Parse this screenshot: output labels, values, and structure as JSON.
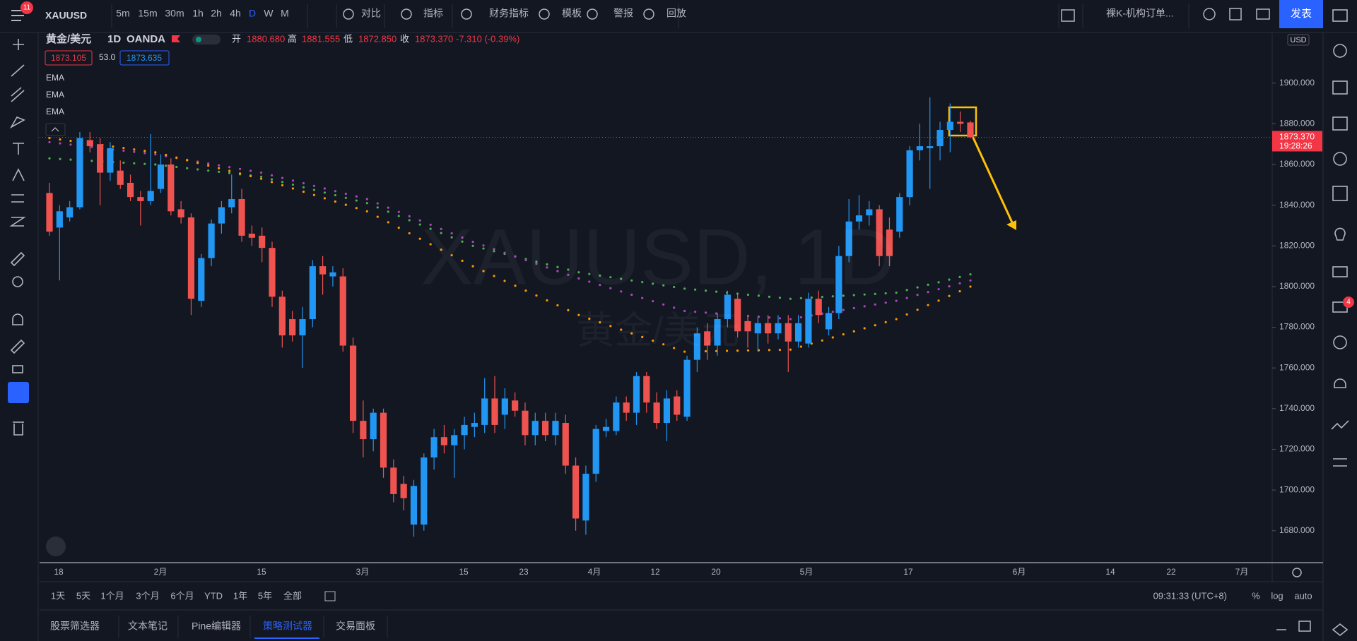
{
  "toolbar": {
    "badge": "11",
    "symbol": "XAUUSD",
    "intervals": [
      "5m",
      "15m",
      "30m",
      "1h",
      "2h",
      "4h",
      "D",
      "W",
      "M"
    ],
    "buttons": [
      "对比",
      "指标",
      "财务指标",
      "模板",
      "警报",
      "回放"
    ],
    "layout": "裸K-机构订单...",
    "publish": "发表"
  },
  "right_badge": "4",
  "legend": {
    "name": "黄金/美元",
    "interval": "1D",
    "exchange": "OANDA",
    "ohlc": [
      {
        "k": "开",
        "v": "1880.680"
      },
      {
        "k": "高",
        "v": "1881.555"
      },
      {
        "k": "低",
        "v": "1872.850"
      },
      {
        "k": "收",
        "v": "1873.370"
      }
    ],
    "change": "-7.310 (-0.39%)",
    "bid": "1873.105",
    "spread": "53.0",
    "ask": "1873.635"
  },
  "watermark": {
    "symbol": "XAUUSD, 1D",
    "name": "黄金/美元"
  },
  "chart_data": {
    "type": "candlestick",
    "currency": "USD",
    "up_color": "#2196f3",
    "down_color": "#ef5350",
    "grid": false,
    "ylim": [
      1664.3,
      1924.9
    ],
    "yticks": [
      {
        "value": 1680,
        "label": "1680.000"
      },
      {
        "value": 1700,
        "label": "1700.000"
      },
      {
        "value": 1720,
        "label": "1720.000"
      },
      {
        "value": 1740,
        "label": "1740.000"
      },
      {
        "value": 1760,
        "label": "1760.000"
      },
      {
        "value": 1780,
        "label": "1780.000"
      },
      {
        "value": 1800,
        "label": "1800.000"
      },
      {
        "value": 1820,
        "label": "1820.000"
      },
      {
        "value": 1840,
        "label": "1840.000"
      },
      {
        "value": 1860,
        "label": "1860.000"
      },
      {
        "value": 1880,
        "label": "1880.000"
      },
      {
        "value": 1900,
        "label": "1900.000"
      }
    ],
    "x_axis_labels": [
      "18",
      "2月",
      "15",
      "3月",
      "15",
      "23",
      "4月",
      "12",
      "20",
      "5月",
      "17",
      "6月",
      "14",
      "22",
      "7月"
    ],
    "last_price": {
      "value": 1873.37,
      "label": "1873.370"
    },
    "countdown": "19:28:26",
    "candles": [
      [
        1846,
        1851,
        1825,
        1827
      ],
      [
        1829,
        1840,
        1803,
        1837
      ],
      [
        1834,
        1842,
        1832,
        1839
      ],
      [
        1839,
        1876,
        1838,
        1873
      ],
      [
        1872,
        1876,
        1866,
        1869
      ],
      [
        1870,
        1873,
        1840,
        1856
      ],
      [
        1856,
        1871,
        1852,
        1868
      ],
      [
        1857,
        1862,
        1848,
        1850
      ],
      [
        1851,
        1855,
        1842,
        1844
      ],
      [
        1844,
        1847,
        1830,
        1842
      ],
      [
        1842,
        1875,
        1840,
        1847
      ],
      [
        1848,
        1865,
        1846,
        1860
      ],
      [
        1860,
        1863,
        1835,
        1837
      ],
      [
        1838,
        1842,
        1831,
        1834
      ],
      [
        1834,
        1836,
        1786,
        1794
      ],
      [
        1793,
        1816,
        1790,
        1814
      ],
      [
        1814,
        1833,
        1810,
        1831
      ],
      [
        1831,
        1842,
        1826,
        1839
      ],
      [
        1839,
        1855,
        1836,
        1843
      ],
      [
        1843,
        1848,
        1822,
        1825
      ],
      [
        1826,
        1830,
        1820,
        1824
      ],
      [
        1825,
        1829,
        1812,
        1819
      ],
      [
        1819,
        1822,
        1790,
        1795
      ],
      [
        1795,
        1798,
        1770,
        1776
      ],
      [
        1784,
        1788,
        1773,
        1776
      ],
      [
        1776,
        1790,
        1760,
        1784
      ],
      [
        1784,
        1813,
        1780,
        1810
      ],
      [
        1810,
        1815,
        1796,
        1806
      ],
      [
        1805,
        1810,
        1800,
        1807
      ],
      [
        1805,
        1809,
        1768,
        1771
      ],
      [
        1771,
        1775,
        1728,
        1734
      ],
      [
        1734,
        1744,
        1716,
        1725
      ],
      [
        1725,
        1740,
        1719,
        1738
      ],
      [
        1738,
        1740,
        1706,
        1711
      ],
      [
        1711,
        1715,
        1694,
        1698
      ],
      [
        1703,
        1707,
        1690,
        1696
      ],
      [
        1683,
        1705,
        1677,
        1702
      ],
      [
        1683,
        1718,
        1680,
        1716
      ],
      [
        1716,
        1730,
        1710,
        1726
      ],
      [
        1726,
        1732,
        1718,
        1722
      ],
      [
        1722,
        1730,
        1706,
        1727
      ],
      [
        1727,
        1736,
        1720,
        1732
      ],
      [
        1731,
        1738,
        1726,
        1733
      ],
      [
        1732,
        1755,
        1728,
        1745
      ],
      [
        1745,
        1756,
        1728,
        1732
      ],
      [
        1737,
        1750,
        1730,
        1745
      ],
      [
        1744,
        1748,
        1736,
        1739
      ],
      [
        1739,
        1743,
        1722,
        1727
      ],
      [
        1727,
        1738,
        1722,
        1734
      ],
      [
        1734,
        1738,
        1724,
        1727
      ],
      [
        1727,
        1738,
        1722,
        1734
      ],
      [
        1733,
        1737,
        1708,
        1712
      ],
      [
        1712,
        1716,
        1680,
        1686
      ],
      [
        1685,
        1712,
        1678,
        1708
      ],
      [
        1708,
        1732,
        1704,
        1730
      ],
      [
        1729,
        1735,
        1726,
        1731
      ],
      [
        1729,
        1746,
        1727,
        1743
      ],
      [
        1743,
        1746,
        1734,
        1738
      ],
      [
        1738,
        1758,
        1732,
        1756
      ],
      [
        1756,
        1758,
        1738,
        1743
      ],
      [
        1743,
        1748,
        1730,
        1733
      ],
      [
        1733,
        1749,
        1724,
        1745
      ],
      [
        1746,
        1749,
        1734,
        1737
      ],
      [
        1736,
        1766,
        1734,
        1764
      ],
      [
        1764,
        1780,
        1758,
        1777
      ],
      [
        1778,
        1782,
        1764,
        1771
      ],
      [
        1771,
        1787,
        1766,
        1784
      ],
      [
        1784,
        1798,
        1780,
        1796
      ],
      [
        1794,
        1797,
        1775,
        1778
      ],
      [
        1783,
        1786,
        1770,
        1778
      ],
      [
        1777,
        1785,
        1768,
        1782
      ],
      [
        1782,
        1786,
        1772,
        1777
      ],
      [
        1777,
        1786,
        1774,
        1782
      ],
      [
        1782,
        1786,
        1758,
        1773
      ],
      [
        1773,
        1786,
        1770,
        1782
      ],
      [
        1772,
        1797,
        1770,
        1794
      ],
      [
        1794,
        1798,
        1782,
        1786
      ],
      [
        1779,
        1790,
        1776,
        1787
      ],
      [
        1787,
        1820,
        1784,
        1815
      ],
      [
        1815,
        1843,
        1812,
        1832
      ],
      [
        1832,
        1845,
        1828,
        1835
      ],
      [
        1835,
        1842,
        1830,
        1838
      ],
      [
        1838,
        1840,
        1810,
        1815
      ],
      [
        1828,
        1834,
        1810,
        1815
      ],
      [
        1827,
        1846,
        1824,
        1844
      ],
      [
        1844,
        1869,
        1840,
        1867
      ],
      [
        1867,
        1880,
        1862,
        1869
      ],
      [
        1868,
        1893,
        1848,
        1869
      ],
      [
        1869,
        1881,
        1862,
        1877
      ],
      [
        1877,
        1890,
        1866,
        1881
      ],
      [
        1881,
        1886,
        1876,
        1880
      ],
      [
        1880.68,
        1881.555,
        1872.85,
        1873.37
      ]
    ],
    "series": [
      {
        "name": "EMA",
        "color": "#4caf50",
        "values": [
          1863,
          1862.7,
          1862.4,
          1862.1,
          1861.8,
          1861.5,
          1861.2,
          1860.9,
          1860.6,
          1860.3,
          1860,
          1859.4,
          1858.8,
          1858.2,
          1857.6,
          1857,
          1856.4,
          1855.8,
          1855.2,
          1854.6,
          1854,
          1852.7,
          1851.4,
          1850.1,
          1848.8,
          1847.5,
          1846.2,
          1844.9,
          1843.6,
          1842.3,
          1841,
          1838.9,
          1836.8,
          1834.7,
          1832.6,
          1830.5,
          1828.4,
          1826.3,
          1824.2,
          1822.1,
          1820,
          1818.7,
          1817.4,
          1816.1,
          1814.8,
          1813.5,
          1812.2,
          1810.9,
          1809.6,
          1808.3,
          1807,
          1806.2,
          1805.4,
          1804.6,
          1803.8,
          1803,
          1802.2,
          1801.4,
          1800.6,
          1799.8,
          1799,
          1798.5,
          1798,
          1797.5,
          1797,
          1796.5,
          1796,
          1795.5,
          1795,
          1794.5,
          1794,
          1794.3,
          1794.6,
          1794.9,
          1795.2,
          1795.5,
          1795.8,
          1796.1,
          1796.4,
          1796.7,
          1797,
          1798.3,
          1799.6,
          1800.9,
          1802.1,
          1803.4,
          1804.7,
          1806
        ]
      },
      {
        "name": "EMA",
        "color": "#ab47bc",
        "values": [
          1871,
          1870.4,
          1869.8,
          1869.2,
          1868.6,
          1868,
          1867.4,
          1866.8,
          1866.2,
          1865.6,
          1865,
          1864.1,
          1863.2,
          1862.3,
          1861.4,
          1860.5,
          1859.6,
          1858.7,
          1857.8,
          1856.9,
          1856,
          1854.7,
          1853.4,
          1852.1,
          1850.8,
          1849.5,
          1848.2,
          1846.9,
          1845.6,
          1844.3,
          1843,
          1840.9,
          1838.8,
          1836.7,
          1834.6,
          1832.5,
          1830.4,
          1828.3,
          1826.2,
          1824.1,
          1822,
          1820.2,
          1818.4,
          1816.6,
          1814.8,
          1813,
          1811.2,
          1809.4,
          1807.6,
          1805.8,
          1804,
          1802.4,
          1800.8,
          1799.2,
          1797.6,
          1796,
          1794.4,
          1792.8,
          1791.2,
          1789.6,
          1788,
          1787.6,
          1787.2,
          1786.8,
          1786.4,
          1786,
          1785.6,
          1785.2,
          1784.8,
          1784.4,
          1784,
          1784.9,
          1785.8,
          1786.7,
          1787.6,
          1788.5,
          1789.4,
          1790.3,
          1791.2,
          1792.1,
          1793,
          1794.4,
          1795.9,
          1797.3,
          1798.7,
          1800.1,
          1801.6,
          1803
        ]
      },
      {
        "name": "EMA",
        "color": "#ff9800",
        "values": [
          1873,
          1872.3,
          1871.6,
          1870.9,
          1870.2,
          1869.5,
          1868.8,
          1868.1,
          1867.4,
          1866.7,
          1866,
          1864.7,
          1863.4,
          1862.1,
          1860.8,
          1859.5,
          1858.2,
          1856.9,
          1855.6,
          1854.3,
          1853,
          1851.4,
          1849.8,
          1848.2,
          1846.6,
          1845,
          1843.4,
          1841.8,
          1840.2,
          1838.6,
          1837,
          1834.3,
          1831.6,
          1828.9,
          1826.2,
          1823.5,
          1820.8,
          1818.1,
          1815.4,
          1812.7,
          1810,
          1807.6,
          1805.2,
          1802.8,
          1800.4,
          1798,
          1795.6,
          1793.2,
          1790.8,
          1788.4,
          1786,
          1784.2,
          1782.4,
          1780.6,
          1778.8,
          1777,
          1775.2,
          1773.4,
          1771.6,
          1769.8,
          1768,
          1768.1,
          1768.2,
          1768.3,
          1768.4,
          1768.5,
          1768.6,
          1768.7,
          1768.8,
          1768.9,
          1769,
          1770.5,
          1772,
          1773.5,
          1775,
          1776.5,
          1778,
          1779.5,
          1781,
          1782.5,
          1784,
          1786.3,
          1788.6,
          1790.9,
          1793.1,
          1795.4,
          1797.7,
          1800
        ]
      }
    ]
  },
  "range_bar": {
    "ranges": [
      "1天",
      "5天",
      "1个月",
      "3个月",
      "6个月",
      "YTD",
      "1年",
      "5年",
      "全部"
    ],
    "clock": "09:31:33 (UTC+8)",
    "percent": "%",
    "log": "log",
    "auto": "auto"
  },
  "tabs": [
    "股票筛选器",
    "文本笔记",
    "Pine编辑器",
    "策略测试器",
    "交易面板"
  ]
}
